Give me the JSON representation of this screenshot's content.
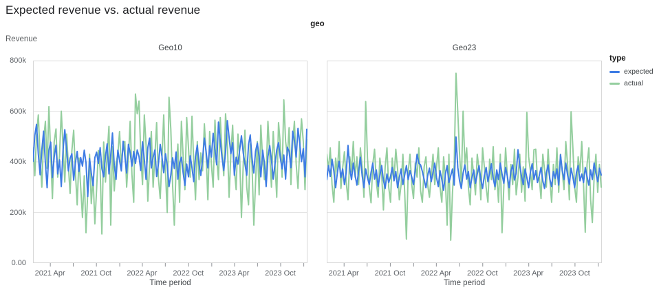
{
  "title": "Expected revenue vs. actual revenue",
  "facet_header": "geo",
  "y_axis_label": "Revenue",
  "x_axis_label": "Time period",
  "legend": {
    "title": "type",
    "items": [
      {
        "label": "expected",
        "color": "#3e7ce4"
      },
      {
        "label": "actual",
        "color": "#94ce9e"
      }
    ]
  },
  "colors": {
    "grid": "#e4e4e4",
    "border": "#d8d8d8",
    "tick": "#8e9196",
    "background": "#ffffff"
  },
  "chart_data": {
    "type": "line",
    "faceted_by": "geo",
    "x_unit": "week",
    "x_range": "2021-01 to 2024-01",
    "ylabel": "Revenue",
    "xlabel": "Time period",
    "ylim_k": [
      0,
      800
    ],
    "grid": true,
    "legend_position": "right",
    "y_ticks": [
      {
        "value_k": 0,
        "label": "0.00"
      },
      {
        "value_k": 200,
        "label": "200k"
      },
      {
        "value_k": 400,
        "label": "400k"
      },
      {
        "value_k": 600,
        "label": "600k"
      },
      {
        "value_k": 800,
        "label": "800k"
      }
    ],
    "x_minor_tick_weeks": [
      9.6,
      22.6,
      35.7,
      48.9,
      61.7,
      74.7,
      87.9,
      101,
      113.9,
      126.9,
      140,
      153.1
    ],
    "x_label_ticks": [
      {
        "week": 9.6,
        "label": "2021 Apr"
      },
      {
        "week": 35.7,
        "label": "2021 Oct"
      },
      {
        "week": 61.7,
        "label": "2022 Apr"
      },
      {
        "week": 87.9,
        "label": "2022 Oct"
      },
      {
        "week": 113.9,
        "label": "2023 Apr"
      },
      {
        "week": 140,
        "label": "2023 Oct"
      }
    ],
    "total_weeks": 156,
    "facets": [
      {
        "name": "Geo10",
        "series": [
          {
            "name": "expected",
            "values_k": [
              402,
              505,
              548,
              431,
              349,
              447,
              521,
              394,
              298,
              446,
              478,
              338,
              419,
              466,
              352,
              408,
              302,
              447,
              527,
              448,
              364,
              414,
              432,
              327,
              396,
              441,
              362,
              417,
              383,
              446,
              397,
              263,
              414,
              356,
              306,
              417,
              438,
              394,
              456,
              374,
              341,
              422,
              471,
              352,
              426,
              514,
              386,
              331,
              446,
              406,
              364,
              481,
              421,
              356,
              469,
              436,
              383,
              441,
              394,
              447,
              421,
              366,
              479,
              409,
              331,
              456,
              494,
              376,
              418,
              447,
              342,
              391,
              469,
              422,
              357,
              432,
              386,
              302,
              347,
              416,
              374,
              439,
              332,
              396,
              418,
              356,
              307,
              391,
              341,
              424,
              377,
              322,
              421,
              466,
              389,
              346,
              412,
              494,
              441,
              376,
              463,
              419,
              513,
              446,
              388,
              557,
              481,
              419,
              366,
              438,
              563,
              498,
              432,
              476,
              347,
              418,
              391,
              447,
              503,
              436,
              391,
              347,
              468,
              506,
              414,
              356,
              442,
              474,
              421,
              341,
              446,
              396,
              302,
              421,
              464,
              409,
              332,
              392,
              447,
              476,
              416,
              372,
              427,
              332,
              458,
              441,
              377,
              521,
              483,
              419,
              532,
              474,
              401,
              452,
              341,
              529
            ]
          },
          {
            "name": "actual",
            "values_k": [
              455,
              345,
              505,
              585,
              420,
              300,
              488,
              560,
              375,
              618,
              430,
              255,
              480,
              530,
              340,
              425,
              600,
              455,
              320,
              510,
              385,
              275,
              445,
              525,
              360,
              230,
              415,
              300,
              180,
              345,
              120,
              280,
              430,
              235,
              340,
              155,
              290,
              445,
              370,
              115,
              478,
              320,
              430,
              540,
              150,
              460,
              285,
              395,
              430,
              520,
              380,
              475,
              480,
              300,
              415,
              560,
              350,
              240,
              668,
              590,
              640,
              430,
              310,
              585,
              470,
              245,
              390,
              520,
              300,
              425,
              555,
              335,
              255,
              410,
              585,
              360,
              200,
              655,
              530,
              310,
              150,
              380,
              470,
              240,
              560,
              420,
              290,
              575,
              455,
              340,
              580,
              390,
              250,
              480,
              330,
              435,
              365,
              550,
              430,
              250,
              520,
              390,
              300,
              565,
              415,
              330,
              575,
              440,
              345,
              590,
              480,
              260,
              430,
              545,
              370,
              290,
              510,
              420,
              180,
              390,
              525,
              300,
              230,
              470,
              385,
              150,
              320,
              480,
              270,
              545,
              410,
              330,
              350,
              560,
              430,
              300,
              520,
              390,
              260,
              555,
              470,
              340,
              645,
              480,
              425,
              535,
              310,
              475,
              560,
              390,
              295,
              450,
              570,
              480,
              290,
              488
            ]
          }
        ]
      },
      {
        "name": "Geo23",
        "series": [
          {
            "name": "expected",
            "values_k": [
              330,
              385,
              342,
              410,
              365,
              298,
              355,
              402,
              338,
              372,
              310,
              358,
              465,
              372,
              330,
              395,
              348,
              308,
              362,
              418,
              345,
              298,
              372,
              338,
              310,
              358,
              395,
              332,
              368,
              302,
              345,
              385,
              328,
              295,
              352,
              318,
              342,
              378,
              325,
              362,
              298,
              338,
              372,
              310,
              348,
              385,
              330,
              365,
              340,
              310,
              368,
              430,
              395,
              388,
              362,
              330,
              298,
              345,
              375,
              322,
              358,
              395,
              338,
              302,
              365,
              330,
              288,
              352,
              385,
              318,
              345,
              372,
              308,
              498,
              378,
              325,
              295,
              355,
              388,
              332,
              362,
              298,
              338,
              368,
              315,
              352,
              385,
              330,
              295,
              345,
              378,
              322,
              358,
              392,
              335,
              302,
              368,
              330,
              395,
              352,
              315,
              378,
              342,
              298,
              362,
              388,
              328,
              355,
              448,
              385,
              342,
              310,
              372,
              338,
              298,
              358,
              392,
              330,
              365,
              318,
              345,
              378,
              325,
              295,
              355,
              388,
              332,
              302,
              362,
              335,
              372,
              308,
              428,
              365,
              330,
              395,
              348,
              312,
              375,
              340,
              298,
              358,
              385,
              325,
              352,
              318,
              378,
              342,
              308,
              368,
              330,
              395,
              355,
              322,
              375,
              348
            ]
          },
          {
            "name": "actual",
            "values_k": [
              430,
              370,
              455,
              310,
              240,
              415,
              355,
              480,
              295,
              378,
              440,
              320,
              250,
              420,
              360,
              480,
              340,
              420,
              310,
              455,
              380,
              260,
              638,
              415,
              300,
              238,
              390,
              450,
              320,
              260,
              415,
              355,
              210,
              380,
              455,
              300,
              240,
              415,
              330,
              450,
              370,
              250,
              310,
              430,
              280,
              95,
              360,
              430,
              310,
              255,
              395,
              340,
              455,
              285,
              240,
              380,
              420,
              310,
              260,
              345,
              430,
              310,
              380,
              455,
              300,
              240,
              420,
              330,
              150,
              430,
              90,
              280,
              390,
              750,
              595,
              430,
              310,
              600,
              390,
              455,
              300,
              230,
              415,
              345,
              270,
              430,
              370,
              250,
              455,
              380,
              300,
              240,
              410,
              330,
              460,
              290,
              350,
              240,
              430,
              120,
              300,
              455,
              340,
              250,
              390,
              310,
              450,
              270,
              340,
              430,
              280,
              380,
              245,
              595,
              420,
              365,
              290,
              448,
              450,
              330,
              340,
              255,
              430,
              370,
              300,
              450,
              330,
              240,
              390,
              310,
              455,
              280,
              430,
              360,
              290,
              480,
              390,
              250,
              598,
              455,
              300,
              240,
              420,
              360,
              480,
              310,
              122,
              390,
              455,
              250,
              160,
              340,
              430,
              280,
              390,
              300
            ]
          }
        ]
      }
    ]
  }
}
